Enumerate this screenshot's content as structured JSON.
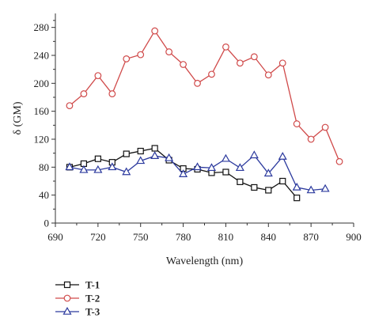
{
  "chart_data": {
    "type": "line",
    "title": "",
    "xlabel": "Wavelength (nm)",
    "ylabel": "δ (GM)",
    "xlim": [
      690,
      900
    ],
    "ylim": [
      0,
      300
    ],
    "x_ticks": [
      690,
      720,
      750,
      780,
      810,
      840,
      870,
      900
    ],
    "y_ticks": [
      0,
      40,
      80,
      120,
      160,
      200,
      240,
      280
    ],
    "grid": false,
    "legend_position": "below-left",
    "series": [
      {
        "name": "T-1",
        "color": "#111111",
        "marker": "square",
        "x": [
          700,
          710,
          720,
          730,
          740,
          750,
          760,
          770,
          780,
          790,
          800,
          810,
          820,
          830,
          840,
          850,
          860
        ],
        "y": [
          80,
          85,
          92,
          87,
          99,
          103,
          107,
          90,
          78,
          77,
          72,
          73,
          59,
          51,
          47,
          60,
          36
        ]
      },
      {
        "name": "T-2",
        "color": "#d04a4a",
        "marker": "circle",
        "x": [
          700,
          710,
          720,
          730,
          740,
          750,
          760,
          770,
          780,
          790,
          800,
          810,
          820,
          830,
          840,
          850,
          860,
          870,
          880,
          890
        ],
        "y": [
          168,
          185,
          211,
          185,
          235,
          241,
          275,
          245,
          227,
          200,
          213,
          252,
          229,
          238,
          212,
          229,
          142,
          120,
          137,
          88
        ]
      },
      {
        "name": "T-3",
        "color": "#2c3a9e",
        "marker": "triangle",
        "x": [
          700,
          710,
          720,
          730,
          740,
          750,
          760,
          770,
          780,
          790,
          800,
          810,
          820,
          830,
          840,
          850,
          860,
          870,
          880
        ],
        "y": [
          80,
          76,
          76,
          80,
          73,
          89,
          96,
          93,
          70,
          80,
          79,
          92,
          79,
          97,
          71,
          95,
          51,
          47,
          49
        ]
      }
    ]
  }
}
